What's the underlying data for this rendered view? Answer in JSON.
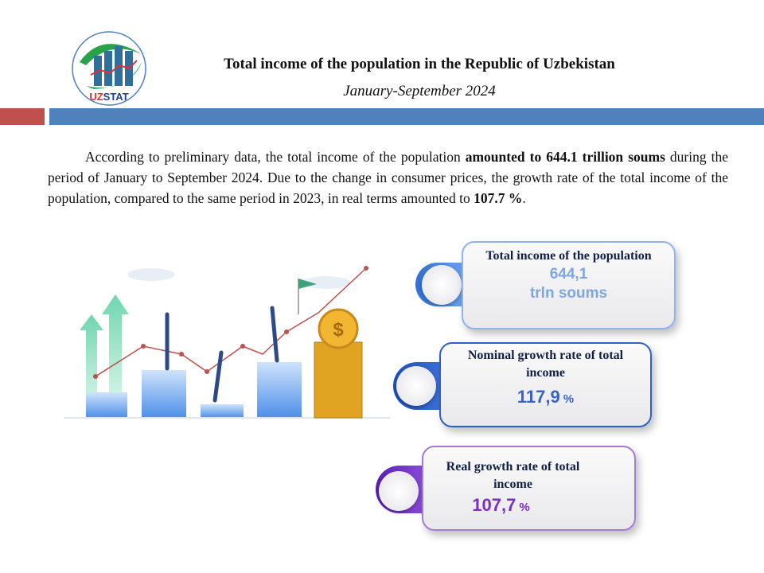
{
  "logo": {
    "text": "UZSTAT"
  },
  "header": {
    "title": "Total income of the population in the Republic of Uzbekistan",
    "subtitle": "January-September 2024"
  },
  "paragraph": {
    "p1": "According to preliminary data, the total income of the population ",
    "b1": "amounted to 644.1 trillion soums",
    "p2": " during the period of January to September 2024. Due to the change in consumer prices, the growth rate of the total income of the population, compared to the same period in 2023, in real terms amounted to ",
    "b2": "107.7 %",
    "p3": "."
  },
  "cards": [
    {
      "label": "Total income of the population",
      "value": "644,1",
      "unit": "trln soums",
      "color": "#7ea6e0",
      "icon": "coins-icon"
    },
    {
      "label": "Nominal growth rate of total income",
      "value": "117,9",
      "unit": "%",
      "color": "#3a63c8",
      "icon": "bar-chart-icon"
    },
    {
      "label": "Real growth rate of total income",
      "value": "107,7",
      "unit": "%",
      "color": "#7a2ec8",
      "icon": "growth-coins-icon"
    }
  ],
  "colors": {
    "red": "#c0504d",
    "blue": "#4f81bd",
    "title": "#0f1f45"
  }
}
